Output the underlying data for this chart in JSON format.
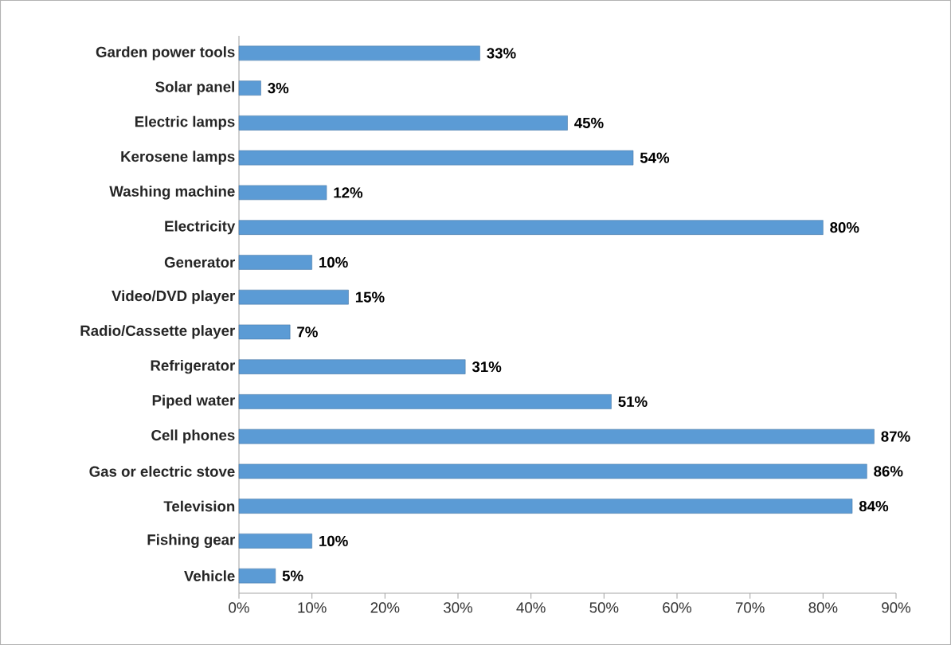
{
  "chart_data": {
    "type": "bar",
    "orientation": "horizontal",
    "categories": [
      "Garden power tools",
      "Solar panel",
      "Electric lamps",
      "Kerosene lamps",
      "Washing machine",
      "Electricity",
      "Generator",
      "Video/DVD player",
      "Radio/Cassette player",
      "Refrigerator",
      "Piped water",
      "Cell phones",
      "Gas or electric stove",
      "Television",
      "Fishing gear",
      "Vehicle"
    ],
    "values": [
      33,
      3,
      45,
      54,
      12,
      80,
      10,
      15,
      7,
      31,
      51,
      87,
      86,
      84,
      10,
      5
    ],
    "value_labels": [
      "33%",
      "3%",
      "45%",
      "54%",
      "12%",
      "80%",
      "10%",
      "15%",
      "7%",
      "31%",
      "51%",
      "87%",
      "86%",
      "84%",
      "10%",
      "5%"
    ],
    "color": "#5b9bd5",
    "xlim": [
      0,
      90
    ],
    "xticks": [
      {
        "value": 0,
        "label": "0%"
      },
      {
        "value": 10,
        "label": "10%"
      },
      {
        "value": 20,
        "label": "20%"
      },
      {
        "value": 30,
        "label": "30%"
      },
      {
        "value": 40,
        "label": "40%"
      },
      {
        "value": 50,
        "label": "50%"
      },
      {
        "value": 60,
        "label": "60%"
      },
      {
        "value": 70,
        "label": "70%"
      },
      {
        "value": 80,
        "label": "80%"
      },
      {
        "value": 90,
        "label": "90%"
      }
    ],
    "grid": false
  }
}
